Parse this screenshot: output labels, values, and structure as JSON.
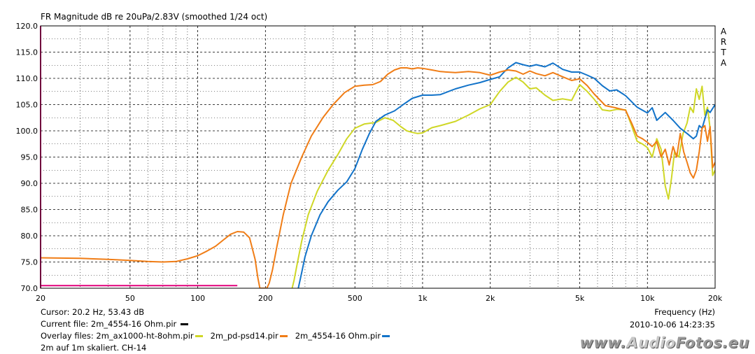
{
  "header": {
    "title": "FR Magnitude dB re 20uPa/2.83V (smoothed 1/24 oct)",
    "arta_letters": [
      "A",
      "R",
      "T",
      "A"
    ]
  },
  "footer": {
    "cursor": "Cursor: 20.2 Hz, 53.43 dB",
    "current_file": "Current file: 2m_4554-16 Ohm.pir",
    "overlay_prefix": "Overlay files: ",
    "overlay_files": [
      {
        "label": "2m_ax1000-ht-8ohm.pir",
        "color": "#cfd726"
      },
      {
        "label": "2m_pd-psd14.pir",
        "color": "#f07d16"
      },
      {
        "label": "2m_4554-16 Ohm.pir",
        "color": "#1273c9"
      }
    ],
    "note": "2m auf 1m skaliert. CH-14",
    "frequency_label": "Frequency (Hz)",
    "timestamp": "2010-10-06  14:23:35",
    "watermark": "www.AudioFotos.eu"
  },
  "chart_data": {
    "type": "line",
    "title": "FR Magnitude dB re 20uPa/2.83V (smoothed 1/24 oct)",
    "xlabel": "Frequency (Hz)",
    "ylabel": "",
    "xscale": "log",
    "xlim": [
      20,
      20000
    ],
    "ylim": [
      70,
      120
    ],
    "grid": true,
    "x_tick_labels": [
      {
        "v": 20,
        "t": "20"
      },
      {
        "v": 50,
        "t": "50"
      },
      {
        "v": 100,
        "t": "100"
      },
      {
        "v": 200,
        "t": "200"
      },
      {
        "v": 500,
        "t": "500"
      },
      {
        "v": 1000,
        "t": "1k"
      },
      {
        "v": 2000,
        "t": "2k"
      },
      {
        "v": 5000,
        "t": "5k"
      },
      {
        "v": 10000,
        "t": "10k"
      },
      {
        "v": 20000,
        "t": "20k"
      }
    ],
    "y_tick_labels": [
      "70.0",
      "75.0",
      "80.0",
      "85.0",
      "90.0",
      "95.0",
      "100.0",
      "105.0",
      "110.0",
      "115.0",
      "120.0"
    ],
    "colors": {
      "current": "#f07d16",
      "yellow": "#cfd726",
      "blue": "#1273c9",
      "marker": "#e0007a",
      "grid": "#000000"
    },
    "marker_line": {
      "x_start": 20,
      "x_end": 150,
      "y": 70.5
    },
    "series": [
      {
        "color": "#f07d16",
        "points": [
          [
            20,
            75.8
          ],
          [
            30,
            75.7
          ],
          [
            40,
            75.5
          ],
          [
            50,
            75.3
          ],
          [
            60,
            75.1
          ],
          [
            70,
            75.0
          ],
          [
            80,
            75.1
          ],
          [
            90,
            75.6
          ],
          [
            100,
            76.2
          ],
          [
            110,
            77.1
          ],
          [
            120,
            78.0
          ],
          [
            130,
            79.2
          ],
          [
            140,
            80.3
          ],
          [
            150,
            80.8
          ],
          [
            160,
            80.7
          ],
          [
            170,
            79.6
          ],
          [
            180,
            75.5
          ],
          [
            185,
            72
          ],
          [
            189,
            70
          ],
          [
            200,
            70
          ],
          [
            203,
            70
          ],
          [
            208,
            71
          ],
          [
            215,
            73.5
          ],
          [
            225,
            78
          ],
          [
            240,
            84
          ],
          [
            260,
            90
          ],
          [
            290,
            95
          ],
          [
            320,
            99
          ],
          [
            360,
            102.5
          ],
          [
            400,
            105
          ],
          [
            450,
            107.3
          ],
          [
            500,
            108.5
          ],
          [
            550,
            108.7
          ],
          [
            600,
            108.8
          ],
          [
            650,
            109.4
          ],
          [
            700,
            110.8
          ],
          [
            750,
            111.6
          ],
          [
            800,
            112.0
          ],
          [
            850,
            112.0
          ],
          [
            900,
            111.8
          ],
          [
            950,
            112.0
          ],
          [
            1000,
            111.9
          ],
          [
            1100,
            111.6
          ],
          [
            1200,
            111.3
          ],
          [
            1400,
            111.1
          ],
          [
            1600,
            111.3
          ],
          [
            1800,
            111.1
          ],
          [
            2000,
            110.6
          ],
          [
            2200,
            111.2
          ],
          [
            2400,
            111.6
          ],
          [
            2600,
            111.4
          ],
          [
            2800,
            110.8
          ],
          [
            3000,
            111.4
          ],
          [
            3200,
            110.9
          ],
          [
            3500,
            110.5
          ],
          [
            3800,
            111.1
          ],
          [
            4200,
            110.3
          ],
          [
            4600,
            109.6
          ],
          [
            5000,
            109.9
          ],
          [
            5400,
            108.6
          ],
          [
            5800,
            107.0
          ],
          [
            6500,
            104.8
          ],
          [
            7200,
            104.4
          ],
          [
            8000,
            103.9
          ],
          [
            8500,
            101.5
          ],
          [
            9000,
            99.0
          ],
          [
            9500,
            98.5
          ],
          [
            10000,
            97.8
          ],
          [
            10500,
            97.0
          ],
          [
            11000,
            98.0
          ],
          [
            11500,
            95.0
          ],
          [
            12000,
            96.5
          ],
          [
            12500,
            93.5
          ],
          [
            13000,
            97.0
          ],
          [
            13500,
            95.0
          ],
          [
            14000,
            99.5
          ],
          [
            14500,
            96.0
          ],
          [
            15000,
            94.0
          ],
          [
            15500,
            92.0
          ],
          [
            16000,
            91.0
          ],
          [
            16500,
            92.5
          ],
          [
            17000,
            96.0
          ],
          [
            17500,
            100.5
          ],
          [
            18000,
            101.0
          ],
          [
            18500,
            98.0
          ],
          [
            19000,
            100.8
          ],
          [
            19500,
            93.0
          ],
          [
            20000,
            94.0
          ]
        ]
      },
      {
        "color": "#cfd726",
        "points": [
          [
            263,
            70
          ],
          [
            268,
            71.5
          ],
          [
            275,
            74
          ],
          [
            290,
            79
          ],
          [
            310,
            84
          ],
          [
            340,
            88.5
          ],
          [
            380,
            92.5
          ],
          [
            420,
            95.5
          ],
          [
            460,
            98.5
          ],
          [
            500,
            100.5
          ],
          [
            550,
            101.3
          ],
          [
            620,
            101.6
          ],
          [
            680,
            102.5
          ],
          [
            740,
            102.0
          ],
          [
            800,
            100.8
          ],
          [
            850,
            100.0
          ],
          [
            900,
            99.7
          ],
          [
            950,
            99.5
          ],
          [
            1000,
            99.6
          ],
          [
            1100,
            100.6
          ],
          [
            1200,
            101.0
          ],
          [
            1400,
            101.8
          ],
          [
            1600,
            103.0
          ],
          [
            1800,
            104.2
          ],
          [
            2000,
            105.0
          ],
          [
            2200,
            107.5
          ],
          [
            2400,
            109.3
          ],
          [
            2600,
            110.2
          ],
          [
            2800,
            109.3
          ],
          [
            3000,
            108.0
          ],
          [
            3200,
            108.2
          ],
          [
            3500,
            106.8
          ],
          [
            3800,
            105.8
          ],
          [
            4200,
            106.1
          ],
          [
            4600,
            105.8
          ],
          [
            5000,
            108.8
          ],
          [
            5400,
            107.5
          ],
          [
            5800,
            106.0
          ],
          [
            6300,
            104.0
          ],
          [
            6800,
            103.8
          ],
          [
            7300,
            104.1
          ],
          [
            8000,
            104.0
          ],
          [
            8500,
            101.0
          ],
          [
            9000,
            98.0
          ],
          [
            9500,
            97.5
          ],
          [
            10000,
            96.8
          ],
          [
            10500,
            95.0
          ],
          [
            11000,
            98.5
          ],
          [
            11500,
            96.5
          ],
          [
            12000,
            89.5
          ],
          [
            12400,
            87.0
          ],
          [
            12800,
            91.0
          ],
          [
            13200,
            96.0
          ],
          [
            13800,
            95.0
          ],
          [
            14400,
            99.5
          ],
          [
            15000,
            101.5
          ],
          [
            15500,
            104.5
          ],
          [
            16000,
            103.5
          ],
          [
            16500,
            108.0
          ],
          [
            17000,
            106.0
          ],
          [
            17500,
            108.5
          ],
          [
            18000,
            103.0
          ],
          [
            18500,
            104.5
          ],
          [
            19000,
            100.5
          ],
          [
            19500,
            91.5
          ],
          [
            20000,
            92.5
          ]
        ]
      },
      {
        "color": "#1273c9",
        "points": [
          [
            280,
            70
          ],
          [
            290,
            73
          ],
          [
            300,
            76
          ],
          [
            320,
            80
          ],
          [
            350,
            84
          ],
          [
            380,
            86.5
          ],
          [
            420,
            88.7
          ],
          [
            460,
            90.3
          ],
          [
            500,
            92.8
          ],
          [
            540,
            96.5
          ],
          [
            580,
            99.5
          ],
          [
            620,
            101.8
          ],
          [
            680,
            103.0
          ],
          [
            750,
            103.8
          ],
          [
            820,
            105.0
          ],
          [
            900,
            106.2
          ],
          [
            1000,
            106.8
          ],
          [
            1100,
            106.8
          ],
          [
            1200,
            106.9
          ],
          [
            1400,
            108.0
          ],
          [
            1600,
            108.7
          ],
          [
            1800,
            109.2
          ],
          [
            2000,
            109.8
          ],
          [
            2200,
            110.3
          ],
          [
            2400,
            112.0
          ],
          [
            2600,
            113.0
          ],
          [
            2800,
            112.6
          ],
          [
            3000,
            112.3
          ],
          [
            3200,
            112.6
          ],
          [
            3500,
            112.2
          ],
          [
            3800,
            112.9
          ],
          [
            4200,
            111.7
          ],
          [
            4600,
            111.2
          ],
          [
            5000,
            111.2
          ],
          [
            5400,
            110.6
          ],
          [
            5800,
            110.0
          ],
          [
            6300,
            108.6
          ],
          [
            6800,
            107.6
          ],
          [
            7300,
            107.8
          ],
          [
            8000,
            106.7
          ],
          [
            9000,
            104.5
          ],
          [
            10000,
            103.4
          ],
          [
            10500,
            104.4
          ],
          [
            11000,
            102.0
          ],
          [
            12000,
            103.5
          ],
          [
            13000,
            102.0
          ],
          [
            14000,
            100.5
          ],
          [
            15000,
            99.5
          ],
          [
            16000,
            98.5
          ],
          [
            16500,
            99.0
          ],
          [
            17000,
            101.0
          ],
          [
            17500,
            100.5
          ],
          [
            18500,
            104.0
          ],
          [
            19000,
            103.5
          ],
          [
            20000,
            105.0
          ]
        ]
      }
    ]
  }
}
